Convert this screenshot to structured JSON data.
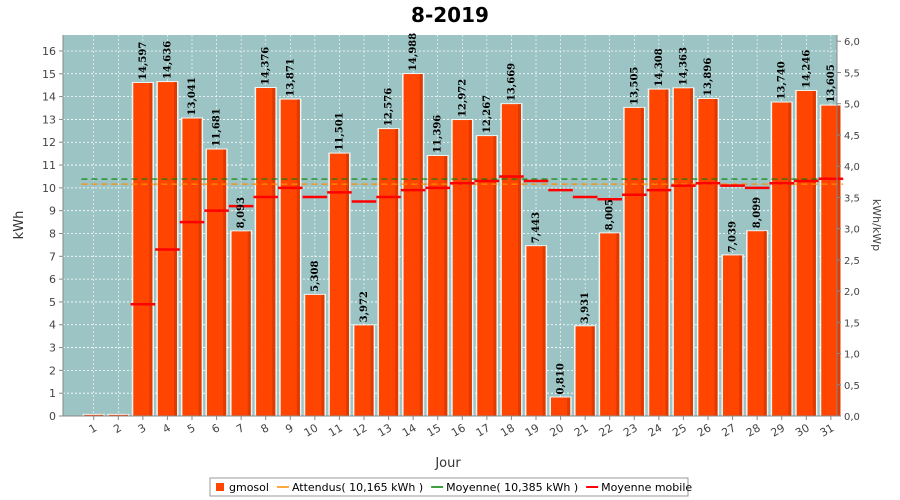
{
  "chart_data": {
    "type": "bar",
    "title": "8-2019",
    "xlabel": "Jour",
    "ylabel": "kWh",
    "y2label": "kWh/kWp",
    "ylim": [
      0,
      16.7
    ],
    "y2lim": [
      0,
      6.1
    ],
    "grid": true,
    "legend_position": "bottom",
    "categories": [
      "1",
      "2",
      "3",
      "4",
      "5",
      "6",
      "7",
      "8",
      "9",
      "10",
      "11",
      "12",
      "13",
      "14",
      "15",
      "16",
      "17",
      "18",
      "19",
      "20",
      "21",
      "22",
      "23",
      "24",
      "25",
      "26",
      "27",
      "28",
      "29",
      "30",
      "31"
    ],
    "yticks": [
      "0",
      "1",
      "2",
      "3",
      "4",
      "5",
      "6",
      "7",
      "8",
      "9",
      "10",
      "11",
      "12",
      "13",
      "14",
      "15",
      "16"
    ],
    "y2ticks": [
      "0,0",
      "0,5",
      "1,0",
      "1,5",
      "2,0",
      "2,5",
      "3,0",
      "3,5",
      "4,0",
      "4,5",
      "5,0",
      "5,5",
      "6,0"
    ],
    "series": [
      {
        "name": "gmosol",
        "kind": "bar",
        "color": "#ff4500",
        "values": [
          0.05,
          0.05,
          14.597,
          14.636,
          13.041,
          11.681,
          8.093,
          14.376,
          13.871,
          5.308,
          11.501,
          3.972,
          12.576,
          14.988,
          11.396,
          12.972,
          12.267,
          13.669,
          7.443,
          0.81,
          3.931,
          8.005,
          13.505,
          14.308,
          14.363,
          13.896,
          7.039,
          8.099,
          13.74,
          14.246,
          13.605
        ],
        "labels": [
          "",
          "",
          "14,597",
          "14,636",
          "13,041",
          "11,681",
          "8,093",
          "14,376",
          "13,871",
          "5,308",
          "11,501",
          "3,972",
          "12,576",
          "14,988",
          "11,396",
          "12,972",
          "12,267",
          "13,669",
          "7,443",
          "0,810",
          "3,931",
          "8,005",
          "13,505",
          "14,308",
          "14,363",
          "13,896",
          "7,039",
          "8,099",
          "13,740",
          "14,246",
          "13,605"
        ]
      },
      {
        "name": "Attendus( 10,165 kWh )",
        "kind": "hline",
        "color": "#ff8c00",
        "value": 10.165
      },
      {
        "name": "Moyenne( 10,385 kWh )",
        "kind": "hline",
        "color": "#008000",
        "value": 10.385
      },
      {
        "name": "Moyenne mobile",
        "kind": "marker",
        "color": "#ff0000",
        "values": [
          null,
          null,
          4.9,
          7.3,
          8.5,
          9.0,
          9.2,
          9.6,
          10.0,
          9.6,
          9.8,
          9.4,
          9.6,
          9.9,
          10.0,
          10.2,
          10.3,
          10.5,
          10.3,
          9.9,
          9.6,
          9.5,
          9.7,
          9.9,
          10.1,
          10.2,
          10.1,
          10.0,
          10.2,
          10.3,
          10.4
        ]
      }
    ]
  }
}
